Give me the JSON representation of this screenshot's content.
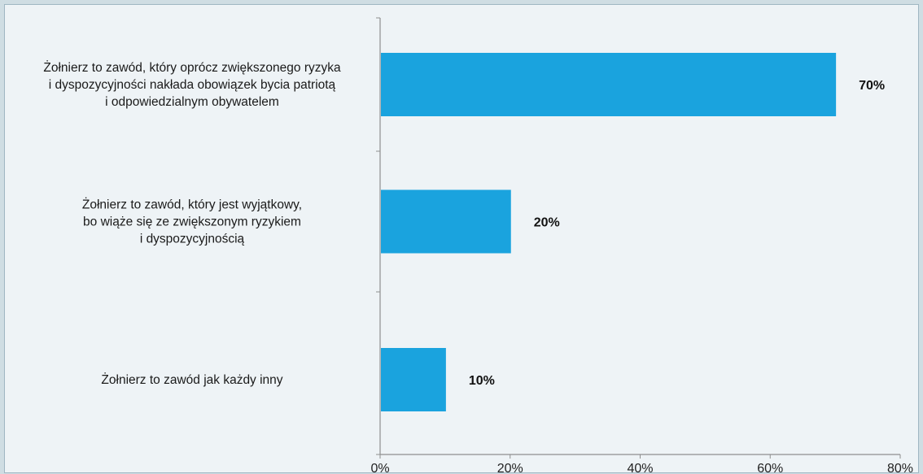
{
  "chart_data": {
    "type": "bar",
    "orientation": "horizontal",
    "categories": [
      [
        "Żołnierz to zawód, który oprócz zwiększonego ryzyka",
        "i dyspozycyjności nakłada obowiązek bycia patriotą",
        "i odpowiedzialnym obywatelem"
      ],
      [
        "Żołnierz to zawód, który jest wyjątkowy,",
        "bo wiąże się ze zwiększonym ryzykiem",
        "i dyspozycyjnością"
      ],
      [
        "Żołnierz to zawód jak każdy inny"
      ]
    ],
    "values": [
      70,
      20,
      10
    ],
    "value_labels": [
      "70%",
      "20%",
      "10%"
    ],
    "xlim": [
      0,
      80
    ],
    "x_ticks": [
      0,
      20,
      40,
      60,
      80
    ],
    "x_tick_labels": [
      "0%",
      "20%",
      "40%",
      "60%",
      "80%"
    ],
    "title": "",
    "xlabel": "",
    "ylabel": "",
    "grid": false,
    "bar_color": "#1aa3de"
  },
  "colors": {
    "page_background": "#cfdde3",
    "plot_background": "#eef3f6",
    "axis": "#8f8f8f"
  }
}
